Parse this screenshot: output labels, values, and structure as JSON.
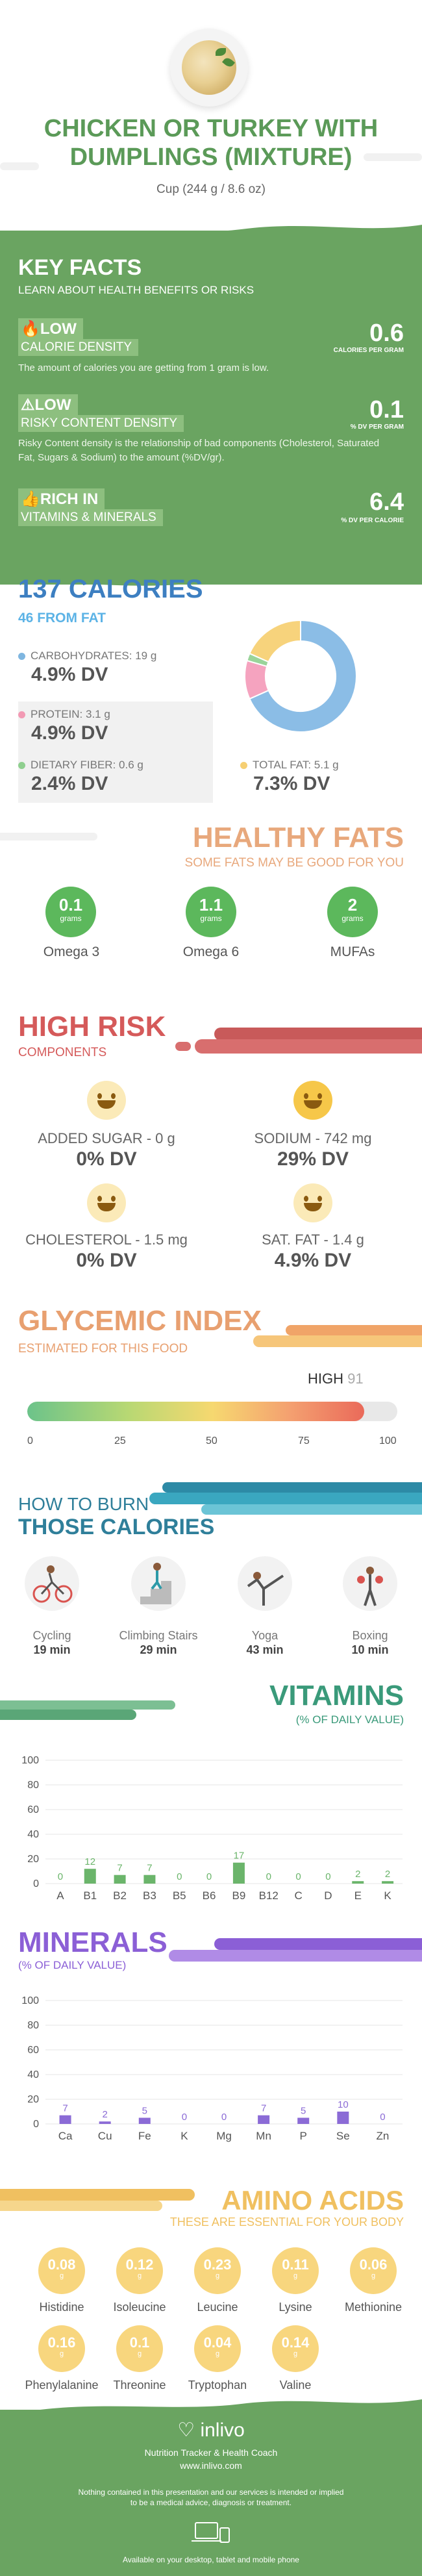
{
  "header": {
    "title_line1": "CHICKEN OR TURKEY WITH",
    "title_line2": "DUMPLINGS (MIXTURE)",
    "serving": "Cup (244 g / 8.6 oz)"
  },
  "key_facts": {
    "title": "KEY FACTS",
    "subtitle": "LEARN ABOUT HEALTH BENEFITS OR RISKS",
    "items": [
      {
        "level": "LOW",
        "label": "CALORIE DENSITY",
        "desc": "The amount of calories you are getting from 1 gram is low.",
        "value": "0.6",
        "unit": "CALORIES PER GRAM",
        "icon": "flame-icon"
      },
      {
        "level": "LOW",
        "label": "RISKY CONTENT DENSITY",
        "desc": "Risky Content density is the relationship of bad components (Cholesterol, Saturated Fat, Sugars & Sodium) to the amount (%DV/gr).",
        "value": "0.1",
        "unit": "% DV PER GRAM",
        "icon": "warning-icon"
      },
      {
        "level": "RICH IN",
        "label": "VITAMINS & MINERALS",
        "desc": "",
        "value": "6.4",
        "unit": "% DV PER CALORIE",
        "icon": "thumbs-up-icon"
      }
    ]
  },
  "calories": {
    "title": "137 CALORIES",
    "from_fat": "46 FROM FAT",
    "nutrients": [
      {
        "name": "CARBOHYDRATES: 19 g",
        "dv": "4.9% DV",
        "color": "#7fb6e0"
      },
      {
        "name": "PROTEIN: 3.1 g",
        "dv": "4.9% DV",
        "color": "#f29ab4"
      },
      {
        "name": "DIETARY FIBER: 0.6 g",
        "dv": "2.4% DV",
        "color": "#8fcf8f"
      },
      {
        "name": "TOTAL FAT: 5.1 g",
        "dv": "7.3% DV",
        "color": "#f6cf72"
      }
    ],
    "donut": [
      {
        "name": "Carbohydrates",
        "value": 19,
        "color": "#8bbde6"
      },
      {
        "name": "Protein",
        "value": 3.1,
        "color": "#f5a3bf"
      },
      {
        "name": "Dietary fiber",
        "value": 0.6,
        "color": "#9ad49a"
      },
      {
        "name": "Total fat",
        "value": 5.1,
        "color": "#f7d37c"
      }
    ]
  },
  "healthy_fats": {
    "title": "HEALTHY FATS",
    "subtitle": "SOME FATS MAY BE GOOD FOR YOU",
    "items": [
      {
        "value": "0.1",
        "unit": "grams",
        "label": "Omega 3"
      },
      {
        "value": "1.1",
        "unit": "grams",
        "label": "Omega 6"
      },
      {
        "value": "2",
        "unit": "grams",
        "label": "MUFAs"
      }
    ]
  },
  "high_risk": {
    "title": "HIGH RISK",
    "subtitle": "COMPONENTS",
    "items": [
      {
        "name": "ADDED SUGAR - 0 g",
        "dv": "0% DV"
      },
      {
        "name": "SODIUM - 742 mg",
        "dv": "29% DV"
      },
      {
        "name": "CHOLESTEROL - 1.5 mg",
        "dv": "0% DV"
      },
      {
        "name": "SAT. FAT - 1.4 g",
        "dv": "4.9% DV"
      }
    ]
  },
  "glycemic": {
    "title": "GLYCEMIC INDEX",
    "subtitle": "ESTIMATED FOR THIS FOOD",
    "level": "HIGH",
    "value": "91",
    "value_num": 91,
    "ticks": [
      "0",
      "25",
      "50",
      "75",
      "100"
    ]
  },
  "burn": {
    "title1": "HOW TO BURN",
    "title2": "THOSE CALORIES",
    "activities": [
      {
        "label": "Cycling",
        "minutes": "19 min"
      },
      {
        "label": "Climbing Stairs",
        "minutes": "29 min"
      },
      {
        "label": "Yoga",
        "minutes": "43 min"
      },
      {
        "label": "Boxing",
        "minutes": "10 min"
      }
    ]
  },
  "vitamins": {
    "title": "VITAMINS",
    "subtitle": "(% OF DAILY VALUE)"
  },
  "minerals": {
    "title": "MINERALS",
    "subtitle": "(% OF DAILY VALUE)"
  },
  "chart_data": [
    {
      "type": "bar",
      "title": "VITAMINS",
      "subtitle": "(% OF DAILY VALUE)",
      "categories": [
        "A",
        "B1",
        "B2",
        "B3",
        "B5",
        "B6",
        "B9",
        "B12",
        "C",
        "D",
        "E",
        "K"
      ],
      "values": [
        0,
        12,
        7,
        7,
        0,
        0,
        17,
        0,
        0,
        0,
        2,
        2
      ],
      "ylim": [
        0,
        100
      ],
      "yticks": [
        "0",
        "20",
        "40",
        "60",
        "80",
        "100"
      ],
      "color": "#6bb56b",
      "grid": true
    },
    {
      "type": "bar",
      "title": "MINERALS",
      "subtitle": "(% OF DAILY VALUE)",
      "categories": [
        "Ca",
        "Cu",
        "Fe",
        "K",
        "Mg",
        "Mn",
        "P",
        "Se",
        "Zn"
      ],
      "values": [
        7,
        2,
        5,
        0,
        0,
        7,
        5,
        10,
        0
      ],
      "ylim": [
        0,
        100
      ],
      "yticks": [
        "0",
        "20",
        "40",
        "60",
        "80",
        "100"
      ],
      "color": "#8b6bd6",
      "grid": true
    }
  ],
  "amino": {
    "title": "AMINO ACIDS",
    "subtitle": "THESE ARE ESSENTIAL FOR YOUR BODY",
    "unit": "g",
    "items": [
      {
        "value": "0.08",
        "label": "Histidine"
      },
      {
        "value": "0.12",
        "label": "Isoleucine"
      },
      {
        "value": "0.23",
        "label": "Leucine"
      },
      {
        "value": "0.11",
        "label": "Lysine"
      },
      {
        "value": "0.06",
        "label": "Methionine"
      },
      {
        "value": "0.16",
        "label": "Phenylalanine"
      },
      {
        "value": "0.1",
        "label": "Threonine"
      },
      {
        "value": "0.04",
        "label": "Tryptophan"
      },
      {
        "value": "0.14",
        "label": "Valine"
      }
    ]
  },
  "footer": {
    "brand": "inlivo",
    "tagline": "Nutrition Tracker & Health Coach",
    "url": "www.inlivo.com",
    "disclaimer1": "Nothing contained in this presentation and our services is intended or implied",
    "disclaimer2": "to be a medical advice, diagnosis or treatment.",
    "available": "Available on your desktop, tablet and mobile phone"
  }
}
